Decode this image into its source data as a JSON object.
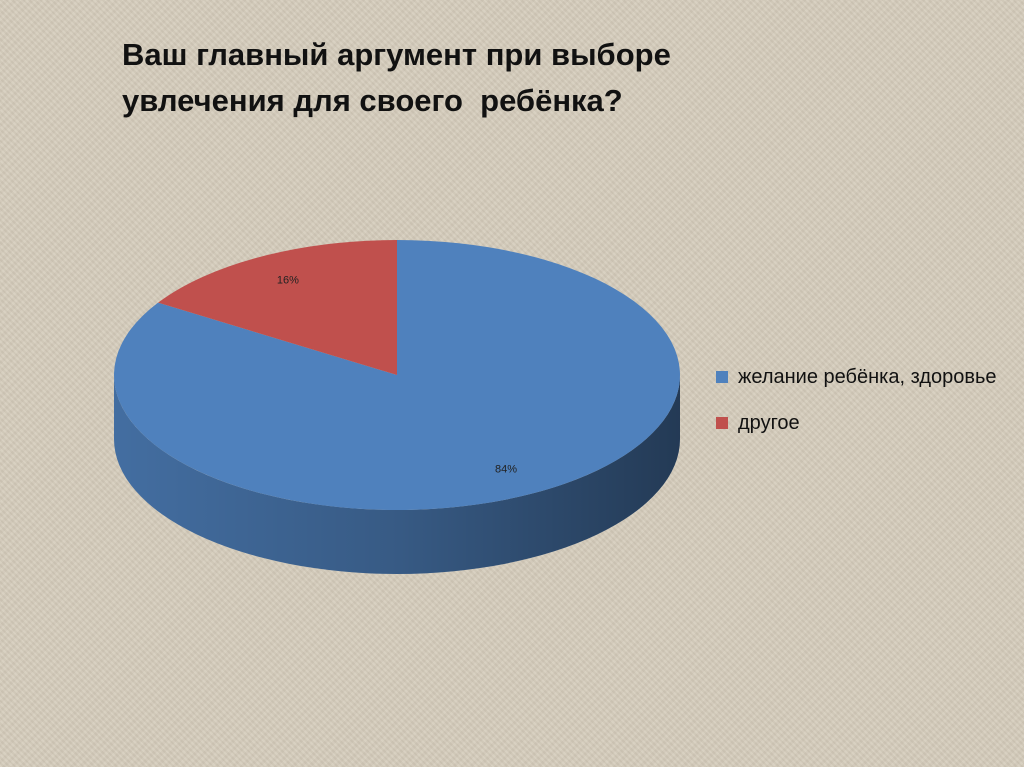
{
  "chart_data": {
    "type": "pie3d",
    "title": "Ваш главный аргумент при выборе увлечения для своего  ребёнка?",
    "categories": [
      "желание ребёнка, здоровье",
      "другое"
    ],
    "values": [
      84,
      16
    ],
    "value_labels": [
      "84%",
      "16%"
    ],
    "colors": [
      "#4f81bd",
      "#c0504d"
    ],
    "legend": "right"
  }
}
